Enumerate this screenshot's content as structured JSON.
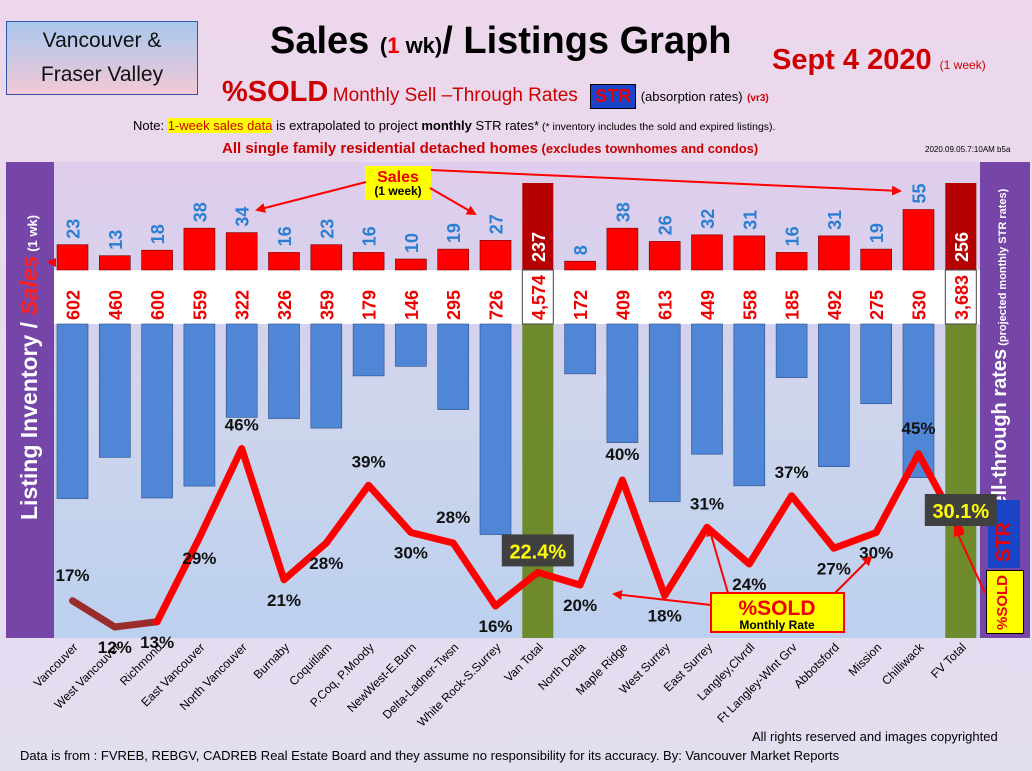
{
  "header": {
    "region_line1": "Vancouver &",
    "region_line2": "Fraser Valley",
    "title_a": "Sales ",
    "title_paren_open": "(",
    "title_one": "1",
    "title_wk": " wk)",
    "title_b": "/ Listings Graph",
    "date": "Sept 4  2020",
    "date_suffix": "(1 week)",
    "pct_sold": "%SOLD",
    "monthly_str": "Monthly Sell –Through Rates",
    "str": "STR",
    "absorption": "(absorption rates)",
    "version": "(vr3)",
    "note_prefix": "Note: ",
    "note_highlight": "1-week sales data",
    "note_mid": " is extrapolated to project ",
    "note_bold": "monthly",
    "note_end": " STR rates*",
    "note_inv": " (* inventory includes the sold and expired listings).",
    "heading": "All single family residential detached homes",
    "heading_small": " (excludes townhomes and condos)",
    "stamp": "2020.09.05.7:10AM b5a"
  },
  "side": {
    "left_label_a": "Listing Inventory",
    "left_label_slash": " / ",
    "left_label_b": "Sales",
    "left_label_c": " (1 wk)",
    "right_label_a": "Sell-through rates",
    "right_label_b": " (projected monthly STR rates)",
    "right_str": "STR",
    "right_pct": "%SOLD"
  },
  "annotations": {
    "sales_label": "Sales",
    "sales_sub": "(1 week)",
    "pctsold_label": "%SOLD",
    "pctsold_sub": "Monthly Rate"
  },
  "footer": {
    "rights": "All rights reserved and  images copyrighted",
    "source": "Data is from : FVREB, REBGV, CADREB Real Estate Board and they assume no responsibility for its accuracy. By: Vancouver Market Reports"
  },
  "colors": {
    "sales_bar": "#ff0000",
    "sales_total": "#b40000",
    "listing_bar": "#4f86d6",
    "total_bar": "#6f8a2c",
    "sales_text": "#2b7fd3",
    "inventory_text": "#ee0000",
    "line": "#ff0000"
  },
  "chart_data": {
    "type": "bar",
    "categories": [
      "Vancouver",
      "West Vancouver",
      "Richmond",
      "East Vancouver",
      "North Vancouver",
      "Burnaby",
      "Coquitlam",
      "P.Coq, P.Moody",
      "NewWest-E.Burn",
      "Delta-Ladner-Twsn",
      "White Rock-S.Surrey",
      "Van Total",
      "North Delta",
      "Maple Ridge",
      "West Surrey",
      "East Surrey",
      "Langley,Clvrdl",
      "Ft Langley-Wlnt Grv",
      "Abbotsford",
      "Mission",
      "Chilliwack",
      "FV Total"
    ],
    "series": [
      {
        "name": "Sales",
        "values": [
          23,
          13,
          18,
          38,
          34,
          16,
          23,
          16,
          10,
          19,
          27,
          237,
          8,
          38,
          26,
          32,
          31,
          16,
          31,
          19,
          55,
          256
        ],
        "labels": [
          "23",
          "13",
          "18",
          "38",
          "34",
          "16",
          "23",
          "16",
          "10",
          "19",
          "27",
          "237",
          "8",
          "38",
          "26",
          "32",
          "31",
          "16",
          "31",
          "19",
          "55",
          "256"
        ]
      },
      {
        "name": "Listing Inventory",
        "values": [
          602,
          460,
          600,
          559,
          322,
          326,
          359,
          179,
          146,
          295,
          726,
          4574,
          172,
          409,
          613,
          449,
          558,
          185,
          492,
          275,
          530,
          3683
        ],
        "labels": [
          "602",
          "460",
          "600",
          "559",
          "322",
          "326",
          "359",
          "179",
          "146",
          "295",
          "726",
          "4,574",
          "172",
          "409",
          "613",
          "449",
          "558",
          "185",
          "492",
          "275",
          "530",
          "3,683"
        ]
      },
      {
        "name": "%SOLD",
        "values": [
          17,
          12,
          13,
          29,
          46,
          21,
          28,
          39,
          30,
          28,
          16,
          22.4,
          20,
          40,
          18,
          31,
          24,
          37,
          27,
          30,
          45,
          30.1
        ],
        "labels": [
          "17%",
          "12%",
          "13%",
          "29%",
          "46%",
          "21%",
          "28%",
          "39%",
          "30%",
          "28%",
          "16%",
          "22.4%",
          "20%",
          "40%",
          "18%",
          "31%",
          "24%",
          "37%",
          "27%",
          "30%",
          "45%",
          "30.1%"
        ]
      }
    ]
  }
}
